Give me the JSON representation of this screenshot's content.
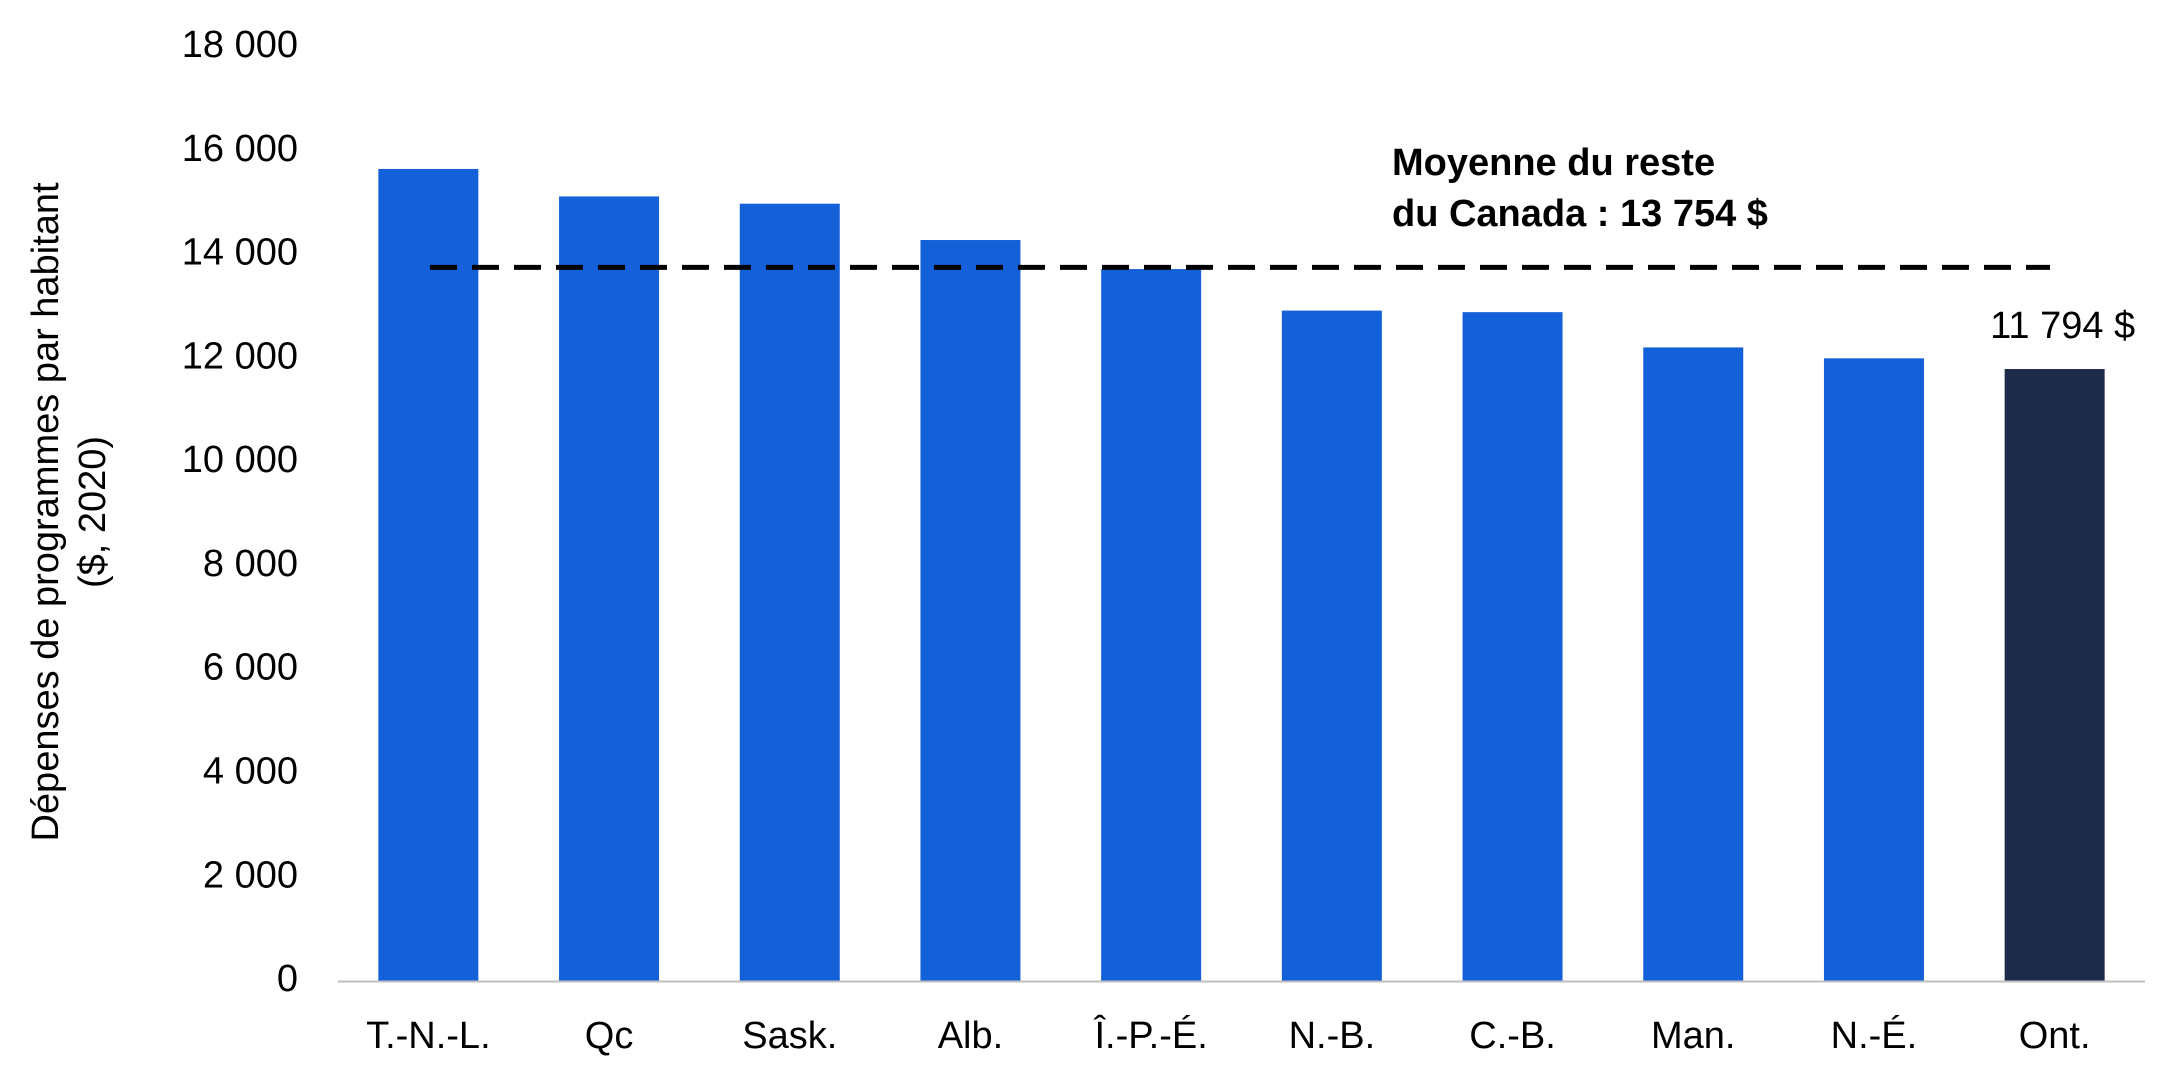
{
  "chart_data": {
    "type": "bar",
    "title": "",
    "xlabel": "",
    "ylabel_lines": [
      "Dépenses de programmes par habitant",
      "($, 2020)"
    ],
    "categories": [
      "T.-N.-L.",
      "Qc",
      "Sask.",
      "Alb.",
      "Î.-P.-É.",
      "N.-B.",
      "C.-B.",
      "Man.",
      "N.-É.",
      "Ont."
    ],
    "values": [
      15650,
      15120,
      14980,
      14280,
      13720,
      12920,
      12890,
      12210,
      12000,
      11794
    ],
    "highlight_category": "Ont.",
    "colors": {
      "bar": "#1360D8",
      "highlight_bar": "#1D2B4B",
      "reference_line": "#000000",
      "axis_line": "#BFBFBF"
    },
    "y_ticks": [
      0,
      2000,
      4000,
      6000,
      8000,
      10000,
      12000,
      14000,
      16000,
      18000
    ],
    "y_tick_labels": [
      "0",
      "2 000",
      "4 000",
      "6 000",
      "8 000",
      "10 000",
      "12 000",
      "14 000",
      "16 000",
      "18 000"
    ],
    "ylim": [
      0,
      18000
    ],
    "grid": false,
    "reference_line": {
      "value": 13754,
      "style": "dashed",
      "label_lines": [
        "Moyenne du reste",
        "du Canada : 13 754 $"
      ]
    },
    "data_labels": [
      {
        "category": "Ont.",
        "text": "11 794 $"
      }
    ]
  }
}
